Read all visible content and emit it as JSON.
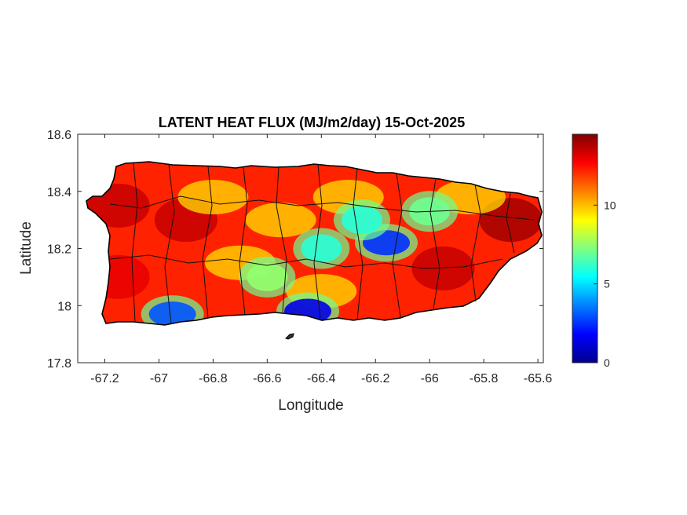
{
  "chart_data": {
    "type": "heatmap",
    "title": "LATENT HEAT FLUX (MJ/m2/day) 15-Oct-2025",
    "xlabel": "Longitude",
    "ylabel": "Latitude",
    "xlim": [
      -67.3,
      -65.58
    ],
    "ylim": [
      17.8,
      18.6
    ],
    "x_ticks": [
      "-67.2",
      "-67",
      "-66.8",
      "-66.6",
      "-66.4",
      "-66.2",
      "-66",
      "-65.8",
      "-65.6"
    ],
    "x_tick_values": [
      -67.2,
      -67.0,
      -66.8,
      -66.6,
      -66.4,
      -66.2,
      -66.0,
      -65.8,
      -65.6
    ],
    "y_ticks": [
      "17.8",
      "18",
      "18.2",
      "18.4",
      "18.6"
    ],
    "y_tick_values": [
      17.8,
      18.0,
      18.2,
      18.4,
      18.6
    ],
    "colorbar": {
      "colormap": "jet",
      "range": [
        0,
        14.5
      ],
      "ticks": [
        "0",
        "5",
        "10"
      ],
      "tick_values": [
        0,
        5,
        10
      ]
    },
    "features": {
      "low_flux_zones": [
        {
          "lon": -66.45,
          "lat": 17.98,
          "value": 1.5
        },
        {
          "lon": -66.16,
          "lat": 18.22,
          "value": 2.5
        },
        {
          "lon": -66.95,
          "lat": 17.97,
          "value": 3.0
        },
        {
          "lon": -66.4,
          "lat": 18.2,
          "value": 6.0
        },
        {
          "lon": -66.25,
          "lat": 18.3,
          "value": 6.0
        },
        {
          "lon": -66.0,
          "lat": 18.33,
          "value": 7.0
        },
        {
          "lon": -66.6,
          "lat": 18.1,
          "value": 7.5
        }
      ],
      "high_flux_zones": [
        {
          "lon": -67.15,
          "lat": 18.35,
          "value": 13.5
        },
        {
          "lon": -66.9,
          "lat": 18.3,
          "value": 13.5
        },
        {
          "lon": -65.7,
          "lat": 18.3,
          "value": 14.0
        },
        {
          "lon": -65.95,
          "lat": 18.13,
          "value": 13.5
        },
        {
          "lon": -67.15,
          "lat": 18.1,
          "value": 13.0
        }
      ]
    }
  },
  "colors": {
    "coastline": "#000000",
    "axes": "#262626"
  }
}
